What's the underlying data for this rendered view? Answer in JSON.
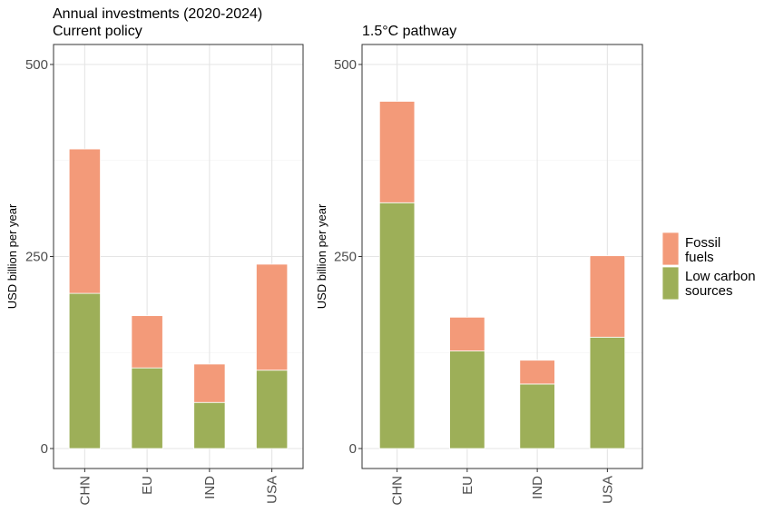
{
  "chart_data": [
    {
      "type": "bar",
      "stacked": true,
      "title": "Annual investments (2020-2024)",
      "subtitle": "Current policy",
      "xlabel": "",
      "ylabel": "USD billion per year",
      "categories": [
        "CHN",
        "EU",
        "IND",
        "USA"
      ],
      "ylim": [
        0,
        500
      ],
      "yticks": [
        "0",
        "250",
        "500"
      ],
      "grid": true,
      "series": [
        {
          "name": "Low carbon sources",
          "color": "#9daf58",
          "values": [
            202,
            105,
            60,
            102
          ]
        },
        {
          "name": "Fossil fuels",
          "color": "#f39a79",
          "values": [
            188,
            68,
            50,
            138
          ]
        }
      ]
    },
    {
      "type": "bar",
      "stacked": true,
      "title": "1.5°C pathway",
      "xlabel": "",
      "ylabel": "USD billion per year",
      "categories": [
        "CHN",
        "EU",
        "IND",
        "USA"
      ],
      "ylim": [
        0,
        500
      ],
      "yticks": [
        "0",
        "250",
        "500"
      ],
      "grid": true,
      "series": [
        {
          "name": "Low carbon sources",
          "color": "#9daf58",
          "values": [
            320,
            127,
            84,
            145
          ]
        },
        {
          "name": "Fossil fuels",
          "color": "#f39a79",
          "values": [
            132,
            44,
            31,
            106
          ]
        }
      ]
    }
  ],
  "legend": {
    "placement": "right",
    "items": [
      {
        "label_lines": [
          "Fossil",
          "fuels"
        ],
        "color": "#f39a79"
      },
      {
        "label_lines": [
          "Low carbon",
          "sources"
        ],
        "color": "#9daf58"
      }
    ]
  }
}
